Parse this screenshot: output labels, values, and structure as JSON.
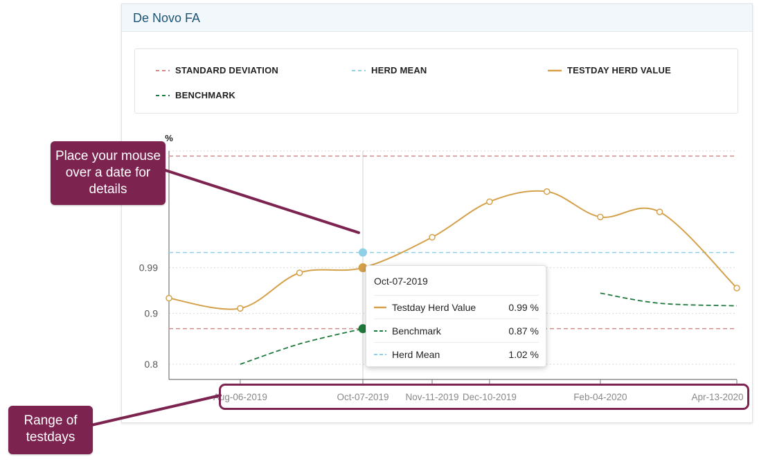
{
  "card": {
    "title": "De Novo FA"
  },
  "legend": {
    "items": [
      {
        "label": "STANDARD DEVIATION",
        "style": "dashed",
        "color": "#d08a8a"
      },
      {
        "label": "HERD MEAN",
        "style": "dashed",
        "color": "#8fd0e6"
      },
      {
        "label": "TESTDAY HERD VALUE",
        "style": "solid",
        "color": "#d4a14a"
      },
      {
        "label": "BENCHMARK",
        "style": "dashed",
        "color": "#1e7a3c"
      }
    ]
  },
  "chart_data": {
    "type": "line",
    "ylabel": "%",
    "yticks": [
      0.8,
      0.9,
      0.99
    ],
    "ytick_labels": [
      "0.8",
      "0.9",
      "0.99"
    ],
    "ylim": [
      0.77,
      1.22
    ],
    "xlim": [
      "2019-07-01",
      "2020-04-13"
    ],
    "xtick_dates": [
      "2019-08-06",
      "2019-10-07",
      "2019-11-11",
      "2019-12-10",
      "2020-02-04",
      "2020-04-13"
    ],
    "xtick_labels": [
      "Aug-06-2019",
      "Oct-07-2019",
      "Nov-11-2019",
      "Dec-10-2019",
      "Feb-04-2020",
      "Apr-13-2020"
    ],
    "grid": true,
    "series": [
      {
        "name": "Testday Herd Value",
        "style": "solid",
        "color": "#d4a14a",
        "points": [
          [
            "2019-07-01",
            0.93
          ],
          [
            "2019-08-06",
            0.91
          ],
          [
            "2019-09-05",
            0.98
          ],
          [
            "2019-10-07",
            0.99
          ],
          [
            "2019-11-11",
            1.05
          ],
          [
            "2019-12-10",
            1.12
          ],
          [
            "2020-01-08",
            1.14
          ],
          [
            "2020-02-04",
            1.09
          ],
          [
            "2020-03-05",
            1.1
          ],
          [
            "2020-04-13",
            0.95
          ]
        ]
      },
      {
        "name": "Benchmark",
        "style": "dashed",
        "color": "#1e7a3c",
        "segments": [
          [
            [
              "2019-08-06",
              0.8
            ],
            [
              "2019-09-05",
              0.84
            ],
            [
              "2019-10-07",
              0.87
            ]
          ],
          [
            [
              "2020-02-04",
              0.94
            ],
            [
              "2020-03-05",
              0.92
            ],
            [
              "2020-04-13",
              0.915
            ]
          ]
        ]
      },
      {
        "name": "Herd Mean",
        "style": "dashed",
        "color": "#8fd0e6",
        "value": 1.02
      },
      {
        "name": "Standard Deviation",
        "style": "dashed",
        "color": "#d08a8a",
        "upper": 1.21,
        "lower": 0.87
      }
    ],
    "hover_date": "2019-10-07"
  },
  "tooltip": {
    "date": "Oct-07-2019",
    "rows": [
      {
        "label": "Testday Herd Value",
        "value": "0.99 %",
        "color": "#d4a14a",
        "style": "solid"
      },
      {
        "label": "Benchmark",
        "value": "0.87 %",
        "color": "#1e7a3c",
        "style": "dashed"
      },
      {
        "label": "Herd Mean",
        "value": "1.02 %",
        "color": "#8fd0e6",
        "style": "dashed"
      }
    ]
  },
  "callouts": {
    "hover": "Place your mouse over a date for details",
    "range": "Range of testdays",
    "color": "#7d2350"
  }
}
